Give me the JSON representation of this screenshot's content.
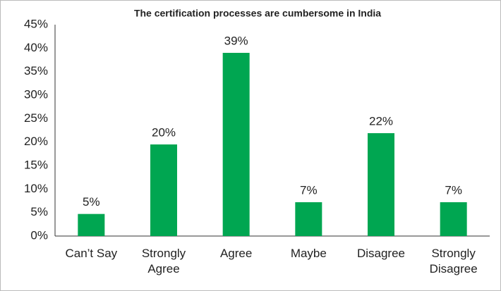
{
  "chart_data": {
    "type": "bar",
    "title": "The certification processes are cumbersome in India",
    "categories": [
      "Can’t Say",
      "Strongly Agree",
      "Agree",
      "Maybe",
      "Disagree",
      "Strongly Disagree"
    ],
    "values": [
      4.7,
      19.5,
      39,
      7.2,
      21.9,
      7.2
    ],
    "value_labels": [
      "5%",
      "20%",
      "39%",
      "7%",
      "22%",
      "7%"
    ],
    "color": "#00a651",
    "ylim": [
      0,
      45
    ],
    "yticks": [
      {
        "value": 0,
        "label": "0%"
      },
      {
        "value": 5,
        "label": "5%"
      },
      {
        "value": 10,
        "label": "10%"
      },
      {
        "value": 15,
        "label": "15%"
      },
      {
        "value": 20,
        "label": "20%"
      },
      {
        "value": 25,
        "label": "25%"
      },
      {
        "value": 30,
        "label": "30%"
      },
      {
        "value": 35,
        "label": "35%"
      },
      {
        "value": 40,
        "label": "40%"
      },
      {
        "value": 45,
        "label": "45%"
      }
    ],
    "grid": false
  }
}
